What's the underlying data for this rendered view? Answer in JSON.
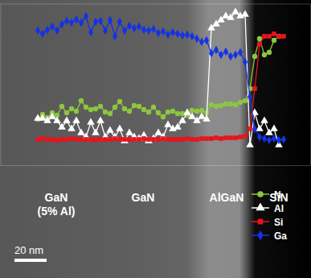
{
  "chart_data": {
    "type": "line",
    "x": [
      23.5,
      26.5,
      29.5,
      32.5,
      35.5,
      38.5,
      41.5,
      44.5,
      47.5,
      50.5,
      53.5,
      56.5,
      59.5,
      62.5,
      65.5,
      68.5,
      71.5,
      74.5,
      77.5,
      80.5,
      83.5,
      86.5,
      89.5,
      92.5,
      95.5,
      98.5,
      101.5,
      104.5,
      107.5,
      110.5,
      113.5,
      116.5,
      119.5,
      122.5,
      125.5,
      128.5,
      131.5,
      134.5,
      137.5,
      140.5,
      143.5,
      146.5,
      149.5,
      152.5,
      155.5,
      158.5,
      161.5,
      164.5,
      167.5,
      170.5,
      173.5,
      176.5
    ],
    "xlim": [
      0,
      193.5
    ],
    "ylim": [
      0,
      100
    ],
    "tick_labels": false,
    "legend": "lower right",
    "series": [
      {
        "name": "N",
        "color": "#8dc63f",
        "marker": "circle",
        "values": [
          28.5,
          31.5,
          29.5,
          32.5,
          31,
          36.5,
          32.5,
          35,
          33.5,
          40,
          36,
          34.5,
          35,
          36.5,
          33,
          32,
          36,
          39.5,
          35,
          33.5,
          37,
          36.5,
          34.5,
          33,
          36,
          32.5,
          30,
          33,
          33.5,
          32,
          32,
          31,
          34,
          33.5,
          34,
          32.5,
          37.5,
          36.5,
          37,
          38,
          38,
          37.5,
          39,
          40,
          47.5,
          67.5,
          78.5,
          68.5,
          70,
          77.5,
          80,
          null
        ]
      },
      {
        "name": "Al",
        "color": "#ffffff",
        "marker": "triangle",
        "values": [
          29,
          29,
          27.5,
          30,
          27.5,
          23.5,
          27.5,
          22.5,
          27.5,
          20,
          17.5,
          26.5,
          20,
          27.5,
          17.5,
          21.5,
          17.5,
          22.5,
          15,
          20,
          17.5,
          16.5,
          18.5,
          15,
          16.5,
          20,
          17.5,
          25,
          22.5,
          23.5,
          27.5,
          32.5,
          30,
          27.5,
          30,
          28.5,
          85,
          87.5,
          90,
          92.5,
          91.5,
          95,
          92.5,
          93.5,
          12.5,
          32.5,
          22.5,
          27.5,
          20,
          22.5,
          12.5,
          null
        ]
      },
      {
        "name": "Si",
        "color": "#e8141b",
        "marker": "square",
        "values": [
          16,
          16.5,
          16,
          16,
          15.5,
          16,
          16,
          16.5,
          16,
          16,
          16,
          16,
          15.5,
          16,
          16,
          16,
          16.5,
          16,
          16,
          16,
          16,
          16,
          16.5,
          16,
          16,
          16,
          16.5,
          16,
          16,
          16,
          16,
          16.5,
          16,
          16,
          16.5,
          16.5,
          16.5,
          17,
          16.5,
          17,
          17,
          17,
          17.5,
          18,
          22.5,
          47.5,
          75,
          80,
          80,
          81.5,
          80,
          80
        ]
      },
      {
        "name": "Ga",
        "color": "#1432e6",
        "marker": "diamond",
        "values": [
          83.5,
          81.5,
          84,
          86,
          83.5,
          87.5,
          89.5,
          88.5,
          90.5,
          88.5,
          92.5,
          82.5,
          89,
          89.5,
          83.5,
          90,
          80,
          89,
          83.5,
          86.5,
          85,
          86,
          84,
          83.5,
          84.5,
          82,
          83,
          81,
          82.5,
          81.5,
          80.5,
          81,
          80,
          78.5,
          76.5,
          77.5,
          69.5,
          71.5,
          68.5,
          70.5,
          67.5,
          68.5,
          70,
          64,
          42.5,
          22.5,
          17.5,
          16.5,
          15.5,
          16.5,
          15.5,
          16
        ]
      }
    ],
    "annotations": [
      {
        "text": [
          "GaN",
          "(5% Al)"
        ],
        "x": 35
      },
      {
        "text": [
          "GaN"
        ],
        "x": 89
      },
      {
        "text": [
          "AlGaN"
        ],
        "x": 141
      },
      {
        "text": [
          "SiN"
        ],
        "x": 173.5
      }
    ],
    "scale_bar": {
      "label": "20 nm",
      "length": 20
    }
  }
}
